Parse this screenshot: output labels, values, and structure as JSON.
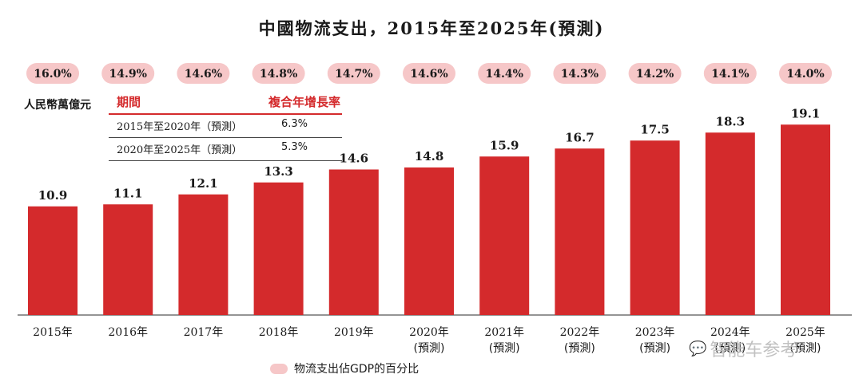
{
  "chart_data": {
    "type": "bar",
    "title": "中國物流支出，2015年至2025年(預測)",
    "ylabel": "人民幣萬億元",
    "categories": [
      "2015年",
      "2016年",
      "2017年",
      "2018年",
      "2019年",
      "2020年",
      "2021年",
      "2022年",
      "2023年",
      "2024年",
      "2025年"
    ],
    "category_notes": [
      "",
      "",
      "",
      "",
      "",
      "(預測)",
      "(預測)",
      "(預測)",
      "(預測)",
      "(預測)",
      "(預測)"
    ],
    "values": [
      10.9,
      11.1,
      12.1,
      13.3,
      14.6,
      14.8,
      15.9,
      16.7,
      17.5,
      18.3,
      19.1
    ],
    "value_labels": [
      "10.9",
      "11.1",
      "12.1",
      "13.3",
      "14.6",
      "14.8",
      "15.9",
      "16.7",
      "17.5",
      "18.3",
      "19.1"
    ],
    "gdp_share_labels": [
      "16.0%",
      "14.9%",
      "14.6%",
      "14.8%",
      "14.7%",
      "14.6%",
      "14.4%",
      "14.3%",
      "14.2%",
      "14.1%",
      "14.0%"
    ],
    "legend": "物流支出佔GDP的百分比",
    "ylim": [
      0,
      20
    ],
    "grid": false,
    "colors": {
      "bar": "#d42a2c",
      "pill": "#f6c7c8",
      "axis": "#555555"
    }
  },
  "cagr_table": {
    "header_period": "期間",
    "header_rate": "複合年增長率",
    "rows": [
      {
        "period": "2015年至2020年（預測）",
        "rate": "6.3%"
      },
      {
        "period": "2020年至2025年（預測）",
        "rate": "5.3%"
      }
    ]
  },
  "watermark": {
    "icon": "wechat-icon",
    "text": "智能车参考"
  }
}
